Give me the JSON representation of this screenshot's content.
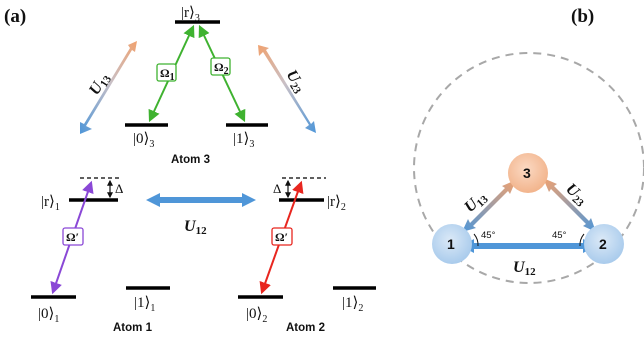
{
  "panels": {
    "a": "(a)",
    "b": "(b)"
  },
  "colors": {
    "level": "#000000",
    "green": "#3fb230",
    "purple": "#8a48d6",
    "red": "#e8261f",
    "blue": "#4f96d8",
    "orange": "#f0a270",
    "node_blue": "#bcd8f0",
    "node_orange": "#f6c4a4",
    "dashed_circle": "#a8a8a8"
  },
  "atom3": {
    "label": "Atom 3",
    "r_ket": "|r⟩",
    "r_sub": "3",
    "g0_ket": "|0⟩",
    "g0_sub": "3",
    "g1_ket": "|1⟩",
    "g1_sub": "3",
    "omega1": "Ω",
    "omega1_sub": "1",
    "omega2": "Ω",
    "omega2_sub": "2"
  },
  "atom1": {
    "label": "Atom 1",
    "r_ket": "|r⟩",
    "r_sub": "1",
    "g0_ket": "|0⟩",
    "g0_sub": "1",
    "g1_ket": "|1⟩",
    "g1_sub": "1",
    "omega": "Ω′",
    "delta": "Δ"
  },
  "atom2": {
    "label": "Atom 2",
    "r_ket": "|r⟩",
    "r_sub": "2",
    "g0_ket": "|0⟩",
    "g0_sub": "2",
    "g1_ket": "|1⟩",
    "g1_sub": "2",
    "omega": "Ω′",
    "delta": "Δ"
  },
  "couplings": {
    "u13": "U",
    "u13_sub": "13",
    "u23": "U",
    "u23_sub": "23",
    "u12": "U",
    "u12_sub": "12"
  },
  "geometry_panel": {
    "node1": "1",
    "node2": "2",
    "node3": "3",
    "angle_left": "45°",
    "angle_right": "45°",
    "u13": "U",
    "u13_sub": "13",
    "u23": "U",
    "u23_sub": "23",
    "u12": "U",
    "u12_sub": "12"
  }
}
